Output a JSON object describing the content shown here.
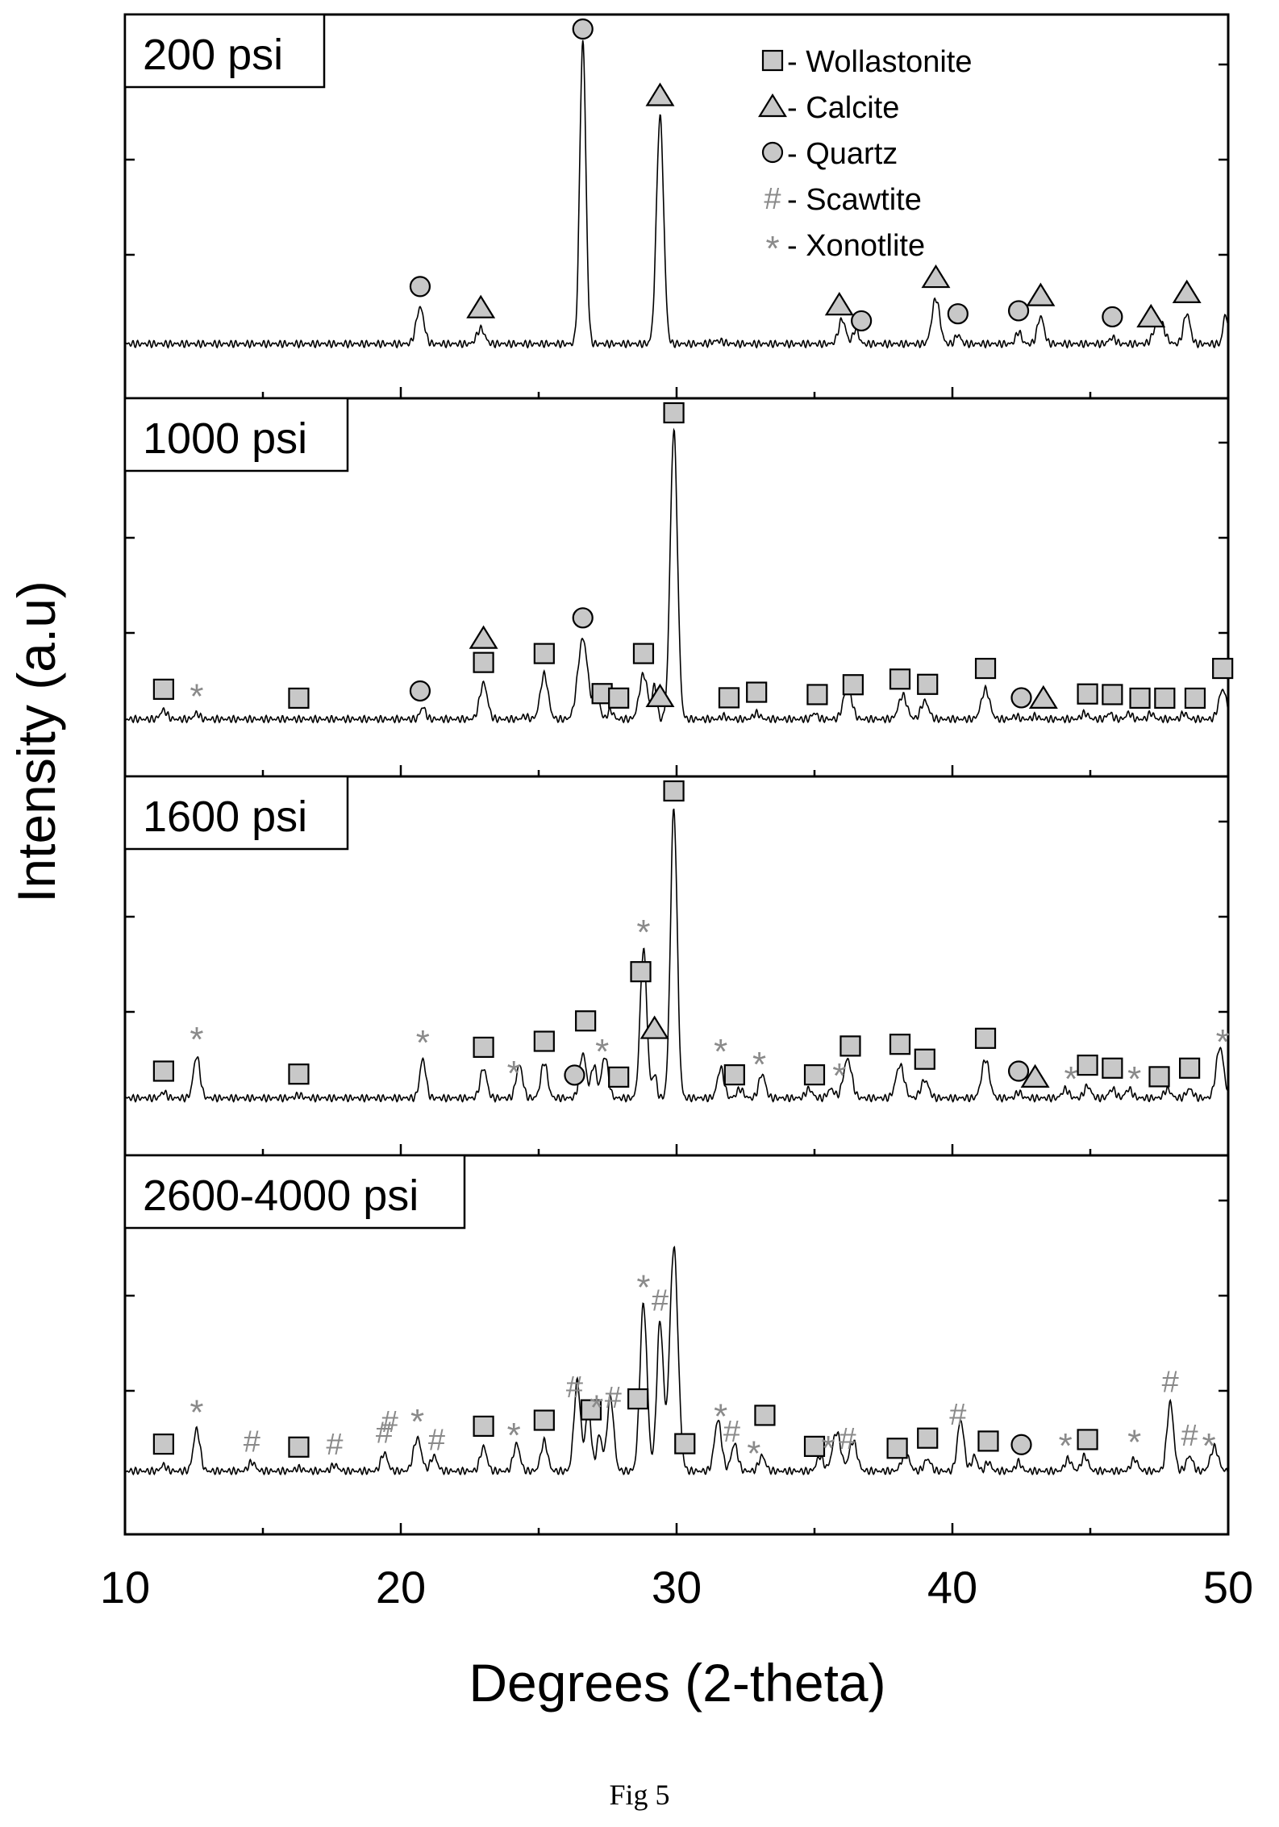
{
  "figure_caption": "Fig 5",
  "chart_data": {
    "type": "line",
    "layout": "stacked-panels",
    "xlabel": "Degrees (2-theta)",
    "ylabel": "Intensity (a.u)",
    "xlim": [
      10,
      50
    ],
    "x_ticks": [
      10,
      20,
      30,
      40,
      50
    ],
    "grid": false,
    "legend": {
      "placement": "top-right of first panel",
      "entries": [
        {
          "marker": "square",
          "label": "- Wollastonite"
        },
        {
          "marker": "triangle",
          "label": "- Calcite"
        },
        {
          "marker": "circle",
          "label": "- Quartz"
        },
        {
          "marker": "hash",
          "label": "- Scawtite"
        },
        {
          "marker": "star",
          "label": "- Xonotlite"
        }
      ]
    },
    "panels": [
      {
        "label": "200 psi",
        "baseline": 0.02,
        "peaks": [
          [
            20.7,
            0.12,
            0.14
          ],
          [
            22.9,
            0.05,
            0.14
          ],
          [
            26.6,
            1.0,
            0.11
          ],
          [
            29.4,
            0.75,
            0.13
          ],
          [
            31.5,
            0.01,
            0.2
          ],
          [
            36.0,
            0.08,
            0.13
          ],
          [
            36.5,
            0.05,
            0.1
          ],
          [
            39.4,
            0.15,
            0.14
          ],
          [
            40.2,
            0.03,
            0.1
          ],
          [
            42.4,
            0.04,
            0.1
          ],
          [
            43.2,
            0.09,
            0.12
          ],
          [
            45.8,
            0.02,
            0.12
          ],
          [
            47.5,
            0.08,
            0.18
          ],
          [
            48.5,
            0.1,
            0.12
          ],
          [
            49.9,
            0.1,
            0.08
          ]
        ],
        "annotations": [
          {
            "marker": "circle",
            "x": 20.7
          },
          {
            "marker": "triangle",
            "x": 22.9
          },
          {
            "marker": "circle",
            "x": 26.6
          },
          {
            "marker": "triangle",
            "x": 29.4
          },
          {
            "marker": "triangle",
            "x": 35.9
          },
          {
            "marker": "circle",
            "x": 36.7
          },
          {
            "marker": "triangle",
            "x": 39.4
          },
          {
            "marker": "circle",
            "x": 40.2
          },
          {
            "marker": "circle",
            "x": 42.4
          },
          {
            "marker": "triangle",
            "x": 43.2
          },
          {
            "marker": "circle",
            "x": 45.8
          },
          {
            "marker": "triangle",
            "x": 47.2
          },
          {
            "marker": "triangle",
            "x": 48.5
          }
        ]
      },
      {
        "label": "1000 psi",
        "baseline": 0.03,
        "peaks": [
          [
            11.4,
            0.03,
            0.12
          ],
          [
            12.6,
            0.02,
            0.1
          ],
          [
            20.8,
            0.04,
            0.1
          ],
          [
            23.0,
            0.12,
            0.14
          ],
          [
            24.5,
            0.01,
            0.1
          ],
          [
            25.2,
            0.15,
            0.14
          ],
          [
            26.6,
            0.27,
            0.18
          ],
          [
            27.1,
            0.11,
            0.1
          ],
          [
            27.6,
            0.03,
            0.1
          ],
          [
            28.8,
            0.15,
            0.15
          ],
          [
            29.2,
            0.11,
            0.08
          ],
          [
            29.9,
            0.97,
            0.13
          ],
          [
            31.7,
            0.01,
            0.1
          ],
          [
            32.9,
            0.02,
            0.12
          ],
          [
            35.0,
            0.02,
            0.1
          ],
          [
            36.2,
            0.11,
            0.15
          ],
          [
            38.2,
            0.08,
            0.15
          ],
          [
            39.0,
            0.06,
            0.14
          ],
          [
            41.2,
            0.1,
            0.15
          ],
          [
            42.3,
            0.01,
            0.1
          ],
          [
            43.0,
            0.01,
            0.1
          ],
          [
            44.8,
            0.02,
            0.12
          ],
          [
            45.7,
            0.02,
            0.1
          ],
          [
            46.4,
            0.02,
            0.1
          ],
          [
            47.2,
            0.02,
            0.1
          ],
          [
            48.4,
            0.02,
            0.1
          ],
          [
            49.8,
            0.1,
            0.14
          ]
        ],
        "annotations": [
          {
            "marker": "square",
            "x": 11.4
          },
          {
            "marker": "star",
            "x": 12.6
          },
          {
            "marker": "square",
            "x": 16.3
          },
          {
            "marker": "circle",
            "x": 20.7
          },
          {
            "marker": "square",
            "x": 23.0
          },
          {
            "marker": "triangle",
            "x": 23.0
          },
          {
            "marker": "square",
            "x": 25.2
          },
          {
            "marker": "circle",
            "x": 26.6
          },
          {
            "marker": "square",
            "x": 27.3
          },
          {
            "marker": "square",
            "x": 27.9
          },
          {
            "marker": "square",
            "x": 28.8
          },
          {
            "marker": "triangle",
            "x": 29.4
          },
          {
            "marker": "square",
            "x": 29.9
          },
          {
            "marker": "square",
            "x": 31.9
          },
          {
            "marker": "square",
            "x": 32.9
          },
          {
            "marker": "square",
            "x": 35.1
          },
          {
            "marker": "square",
            "x": 36.4
          },
          {
            "marker": "square",
            "x": 38.1
          },
          {
            "marker": "square",
            "x": 39.1
          },
          {
            "marker": "square",
            "x": 41.2
          },
          {
            "marker": "circle",
            "x": 42.5
          },
          {
            "marker": "triangle",
            "x": 43.3
          },
          {
            "marker": "square",
            "x": 44.9
          },
          {
            "marker": "square",
            "x": 45.8
          },
          {
            "marker": "square",
            "x": 46.8
          },
          {
            "marker": "square",
            "x": 47.7
          },
          {
            "marker": "square",
            "x": 48.8
          },
          {
            "marker": "square",
            "x": 49.8
          }
        ]
      },
      {
        "label": "1600 psi",
        "baseline": 0.03,
        "peaks": [
          [
            11.4,
            0.02,
            0.1
          ],
          [
            12.6,
            0.14,
            0.12
          ],
          [
            16.3,
            0.01,
            0.12
          ],
          [
            20.8,
            0.13,
            0.11
          ],
          [
            23.0,
            0.1,
            0.12
          ],
          [
            24.3,
            0.11,
            0.12
          ],
          [
            25.2,
            0.12,
            0.12
          ],
          [
            26.6,
            0.15,
            0.12
          ],
          [
            27.0,
            0.11,
            0.1
          ],
          [
            27.4,
            0.14,
            0.12
          ],
          [
            28.8,
            0.5,
            0.12
          ],
          [
            29.2,
            0.08,
            0.08
          ],
          [
            29.9,
            0.97,
            0.12
          ],
          [
            31.6,
            0.1,
            0.12
          ],
          [
            32.3,
            0.03,
            0.12
          ],
          [
            33.1,
            0.08,
            0.12
          ],
          [
            34.8,
            0.03,
            0.12
          ],
          [
            35.6,
            0.03,
            0.12
          ],
          [
            36.2,
            0.13,
            0.15
          ],
          [
            38.1,
            0.11,
            0.15
          ],
          [
            39.0,
            0.06,
            0.14
          ],
          [
            41.2,
            0.13,
            0.14
          ],
          [
            42.4,
            0.02,
            0.1
          ],
          [
            44.1,
            0.03,
            0.12
          ],
          [
            44.9,
            0.04,
            0.12
          ],
          [
            45.8,
            0.03,
            0.12
          ],
          [
            46.4,
            0.03,
            0.12
          ],
          [
            47.8,
            0.03,
            0.12
          ],
          [
            48.6,
            0.03,
            0.12
          ],
          [
            49.7,
            0.17,
            0.14
          ]
        ],
        "annotations": [
          {
            "marker": "square",
            "x": 11.4
          },
          {
            "marker": "star",
            "x": 12.6
          },
          {
            "marker": "square",
            "x": 16.3
          },
          {
            "marker": "star",
            "x": 20.8
          },
          {
            "marker": "square",
            "x": 23.0
          },
          {
            "marker": "star",
            "x": 24.1
          },
          {
            "marker": "square",
            "x": 25.2
          },
          {
            "marker": "circle",
            "x": 26.3
          },
          {
            "marker": "square",
            "x": 26.7
          },
          {
            "marker": "star",
            "x": 27.3
          },
          {
            "marker": "square",
            "x": 27.9
          },
          {
            "marker": "square",
            "x": 28.7
          },
          {
            "marker": "star",
            "x": 28.8
          },
          {
            "marker": "triangle",
            "x": 29.2
          },
          {
            "marker": "square",
            "x": 29.9
          },
          {
            "marker": "star",
            "x": 31.6
          },
          {
            "marker": "square",
            "x": 32.1
          },
          {
            "marker": "star",
            "x": 33.0
          },
          {
            "marker": "square",
            "x": 35.0
          },
          {
            "marker": "star",
            "x": 35.9
          },
          {
            "marker": "square",
            "x": 36.3
          },
          {
            "marker": "square",
            "x": 38.1
          },
          {
            "marker": "square",
            "x": 39.0
          },
          {
            "marker": "square",
            "x": 41.2
          },
          {
            "marker": "circle",
            "x": 42.4
          },
          {
            "marker": "triangle",
            "x": 43.0
          },
          {
            "marker": "star",
            "x": 44.3
          },
          {
            "marker": "square",
            "x": 44.9
          },
          {
            "marker": "square",
            "x": 45.8
          },
          {
            "marker": "star",
            "x": 46.6
          },
          {
            "marker": "square",
            "x": 47.5
          },
          {
            "marker": "square",
            "x": 48.6
          },
          {
            "marker": "star",
            "x": 49.8
          }
        ]
      },
      {
        "label": "2600-4000 psi",
        "baseline": 0.05,
        "peaks": [
          [
            11.4,
            0.02,
            0.1
          ],
          [
            12.6,
            0.14,
            0.12
          ],
          [
            14.6,
            0.03,
            0.12
          ],
          [
            16.3,
            0.01,
            0.12
          ],
          [
            17.6,
            0.02,
            0.12
          ],
          [
            19.4,
            0.06,
            0.12
          ],
          [
            20.6,
            0.11,
            0.14
          ],
          [
            21.2,
            0.05,
            0.12
          ],
          [
            23.0,
            0.08,
            0.12
          ],
          [
            24.2,
            0.09,
            0.12
          ],
          [
            25.2,
            0.1,
            0.12
          ],
          [
            26.4,
            0.3,
            0.12
          ],
          [
            26.8,
            0.22,
            0.1
          ],
          [
            27.2,
            0.12,
            0.1
          ],
          [
            27.6,
            0.25,
            0.12
          ],
          [
            28.8,
            0.56,
            0.13
          ],
          [
            29.4,
            0.5,
            0.12
          ],
          [
            29.9,
            0.75,
            0.15
          ],
          [
            31.5,
            0.17,
            0.13
          ],
          [
            32.1,
            0.09,
            0.12
          ],
          [
            33.1,
            0.05,
            0.12
          ],
          [
            35.2,
            0.05,
            0.12
          ],
          [
            35.8,
            0.13,
            0.15
          ],
          [
            36.4,
            0.1,
            0.14
          ],
          [
            38.3,
            0.06,
            0.14
          ],
          [
            39.1,
            0.04,
            0.12
          ],
          [
            40.3,
            0.17,
            0.12
          ],
          [
            40.8,
            0.05,
            0.1
          ],
          [
            41.3,
            0.03,
            0.1
          ],
          [
            42.4,
            0.03,
            0.1
          ],
          [
            44.2,
            0.04,
            0.12
          ],
          [
            44.8,
            0.05,
            0.12
          ],
          [
            46.6,
            0.04,
            0.12
          ],
          [
            47.9,
            0.23,
            0.12
          ],
          [
            48.6,
            0.05,
            0.12
          ],
          [
            49.5,
            0.08,
            0.14
          ]
        ],
        "annotations": [
          {
            "marker": "square",
            "x": 11.4
          },
          {
            "marker": "star",
            "x": 12.6
          },
          {
            "marker": "hash",
            "x": 14.6
          },
          {
            "marker": "square",
            "x": 16.3
          },
          {
            "marker": "hash",
            "x": 17.6
          },
          {
            "marker": "hash",
            "x": 19.4
          },
          {
            "marker": "hash",
            "x": 19.6
          },
          {
            "marker": "star",
            "x": 20.6
          },
          {
            "marker": "hash",
            "x": 21.3
          },
          {
            "marker": "square",
            "x": 23.0
          },
          {
            "marker": "star",
            "x": 24.1
          },
          {
            "marker": "square",
            "x": 25.2
          },
          {
            "marker": "hash",
            "x": 26.3
          },
          {
            "marker": "square",
            "x": 26.9
          },
          {
            "marker": "star",
            "x": 27.1
          },
          {
            "marker": "hash",
            "x": 27.7
          },
          {
            "marker": "square",
            "x": 28.6
          },
          {
            "marker": "star",
            "x": 28.8
          },
          {
            "marker": "hash",
            "x": 29.4
          },
          {
            "marker": "square",
            "x": 30.3
          },
          {
            "marker": "star",
            "x": 31.6
          },
          {
            "marker": "hash",
            "x": 32.0
          },
          {
            "marker": "star",
            "x": 32.8
          },
          {
            "marker": "square",
            "x": 33.2
          },
          {
            "marker": "square",
            "x": 35.0
          },
          {
            "marker": "star",
            "x": 35.5
          },
          {
            "marker": "hash",
            "x": 36.2
          },
          {
            "marker": "square",
            "x": 38.0
          },
          {
            "marker": "square",
            "x": 39.1
          },
          {
            "marker": "hash",
            "x": 40.2
          },
          {
            "marker": "square",
            "x": 41.3
          },
          {
            "marker": "circle",
            "x": 42.5
          },
          {
            "marker": "star",
            "x": 44.1
          },
          {
            "marker": "square",
            "x": 44.9
          },
          {
            "marker": "star",
            "x": 46.6
          },
          {
            "marker": "hash",
            "x": 47.9
          },
          {
            "marker": "hash",
            "x": 48.6
          },
          {
            "marker": "star",
            "x": 49.3
          }
        ]
      }
    ]
  }
}
